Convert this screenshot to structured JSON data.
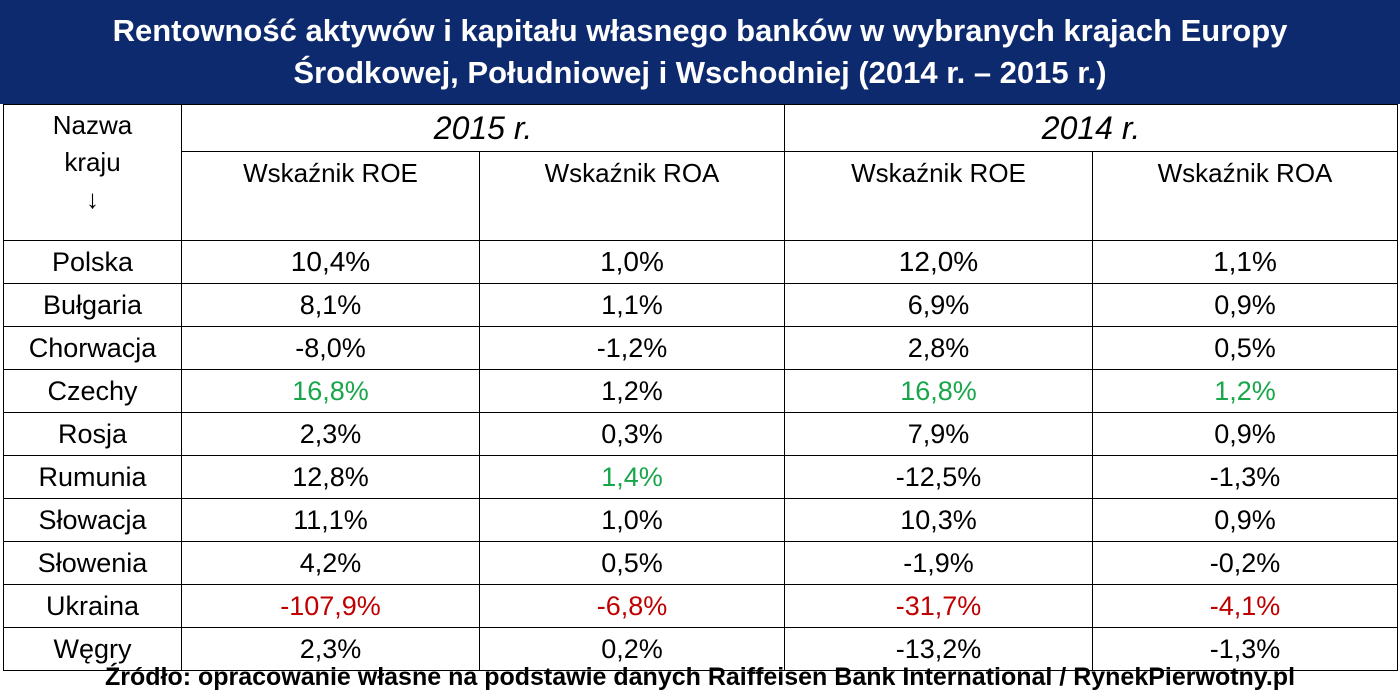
{
  "title": {
    "line1": "Rentowność aktywów i kapitału własnego banków w wybranych krajach Europy",
    "line2": "Środkowej, Południowej i Wschodniej (2014 r. – 2015 r.)"
  },
  "header": {
    "country_line1": "Nazwa",
    "country_line2": "kraju",
    "country_arrow": "↓",
    "year_2015": "2015 r.",
    "year_2014": "2014 r.",
    "roe_label": "Wskaźnik ROE",
    "roa_label": "Wskaźnik ROA"
  },
  "colors": {
    "title_bg": "#0e2a6e",
    "highlight_green": "#18a64a",
    "highlight_red": "#c00000"
  },
  "chart_data": {
    "type": "table",
    "columns": [
      "Nazwa kraju",
      "2015 r. Wskaźnik ROE",
      "2015 r. Wskaźnik ROA",
      "2014 r. Wskaźnik ROE",
      "2014 r. Wskaźnik ROA"
    ],
    "rows": [
      {
        "country": "Polska",
        "roe2015": "10,4%",
        "roa2015": "1,0%",
        "roe2014": "12,0%",
        "roa2014": "1,1%",
        "hl": [
          "",
          "",
          "",
          ""
        ]
      },
      {
        "country": "Bułgaria",
        "roe2015": "8,1%",
        "roa2015": "1,1%",
        "roe2014": "6,9%",
        "roa2014": "0,9%",
        "hl": [
          "",
          "",
          "",
          ""
        ]
      },
      {
        "country": "Chorwacja",
        "roe2015": "-8,0%",
        "roa2015": "-1,2%",
        "roe2014": "2,8%",
        "roa2014": "0,5%",
        "hl": [
          "",
          "",
          "",
          ""
        ]
      },
      {
        "country": "Czechy",
        "roe2015": "16,8%",
        "roa2015": "1,2%",
        "roe2014": "16,8%",
        "roa2014": "1,2%",
        "hl": [
          "green",
          "",
          "green",
          "green"
        ]
      },
      {
        "country": "Rosja",
        "roe2015": "2,3%",
        "roa2015": "0,3%",
        "roe2014": "7,9%",
        "roa2014": "0,9%",
        "hl": [
          "",
          "",
          "",
          ""
        ]
      },
      {
        "country": "Rumunia",
        "roe2015": "12,8%",
        "roa2015": "1,4%",
        "roe2014": "-12,5%",
        "roa2014": "-1,3%",
        "hl": [
          "",
          "green",
          "",
          ""
        ]
      },
      {
        "country": "Słowacja",
        "roe2015": "11,1%",
        "roa2015": "1,0%",
        "roe2014": "10,3%",
        "roa2014": "0,9%",
        "hl": [
          "",
          "",
          "",
          ""
        ]
      },
      {
        "country": "Słowenia",
        "roe2015": "4,2%",
        "roa2015": "0,5%",
        "roe2014": "-1,9%",
        "roa2014": "-0,2%",
        "hl": [
          "",
          "",
          "",
          ""
        ]
      },
      {
        "country": "Ukraina",
        "roe2015": "-107,9%",
        "roa2015": "-6,8%",
        "roe2014": "-31,7%",
        "roa2014": "-4,1%",
        "hl": [
          "red",
          "red",
          "red",
          "red"
        ]
      },
      {
        "country": "Węgry",
        "roe2015": "2,3%",
        "roa2015": "0,2%",
        "roe2014": "-13,2%",
        "roa2014": "-1,3%",
        "hl": [
          "",
          "",
          "",
          ""
        ]
      }
    ]
  },
  "source": "Źródło: opracowanie własne na podstawie danych Raiffeisen Bank International / RynekPierwotny.pl"
}
